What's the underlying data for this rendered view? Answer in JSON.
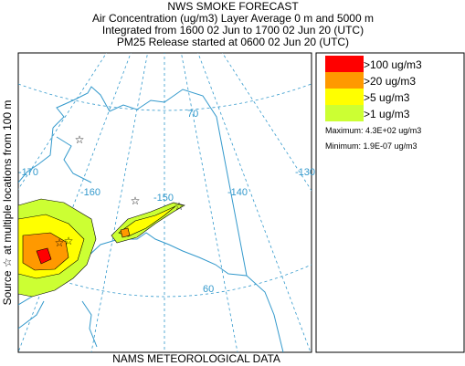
{
  "header": {
    "title": "NWS SMOKE FORECAST",
    "lines": [
      "Air Concentration (ug/m3) Layer Average    0 m and  5000 m",
      "Integrated from 1600 02 Jun to 1700 02 Jun 20 (UTC)",
      "PM25 Release started at 0600 02 Jun 20 (UTC)"
    ]
  },
  "side_label": "Source ☆ at multiple locations from  100 m",
  "footer": "NAMS METEOROLOGICAL DATA",
  "legend": {
    "items": [
      {
        "label": ">100 ug/m3",
        "color": "#ff0000"
      },
      {
        "label": ">20 ug/m3",
        "color": "#ff9900"
      },
      {
        "label": ">5 ug/m3",
        "color": "#ffff00"
      },
      {
        "label": ">1 ug/m3",
        "color": "#ccff33"
      }
    ],
    "maximum": "Maximum: 4.3E+02 ug/m3",
    "minimum": "Minimum: 1.9E-07 ug/m3"
  },
  "map": {
    "longitude_labels": [
      "-170",
      "-160",
      "-150",
      "-140",
      "-130"
    ],
    "latitude_labels": [
      "70",
      "60"
    ]
  }
}
